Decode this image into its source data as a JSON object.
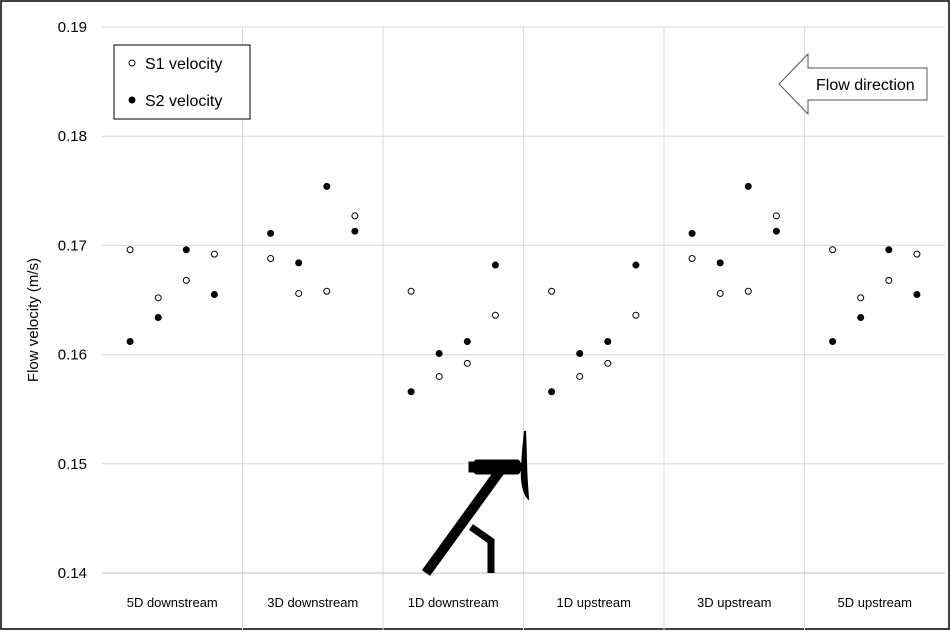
{
  "chart_data": {
    "type": "scatter",
    "title": "",
    "xlabel": "",
    "ylabel": "Flow velocity (m/s)",
    "ylim": [
      0.14,
      0.19
    ],
    "yticks": [
      "0.14",
      "0.15",
      "0.16",
      "0.17",
      "0.18",
      "0.19"
    ],
    "grid": true,
    "legend_position": "top-left",
    "annotation": "Flow direction",
    "categories": [
      "5D downstream",
      "3D downstream",
      "1D downstream",
      "1D upstream",
      "3D upstream",
      "5D upstream"
    ],
    "points_per_category": 4,
    "series": [
      {
        "name": "S1 velocity",
        "marker": "open-circle",
        "values": [
          [
            0.1696,
            0.1652,
            0.1668,
            0.1692
          ],
          [
            0.1688,
            0.1656,
            0.1658,
            0.1727
          ],
          [
            0.1658,
            0.158,
            0.1592,
            0.1636
          ],
          [
            0.1658,
            0.158,
            0.1592,
            0.1636
          ],
          [
            0.1688,
            0.1656,
            0.1658,
            0.1727
          ],
          [
            0.1696,
            0.1652,
            0.1668,
            0.1692
          ]
        ]
      },
      {
        "name": "S2 velocity",
        "marker": "filled-circle",
        "values": [
          [
            0.1612,
            0.1634,
            0.1696,
            0.1655
          ],
          [
            0.1711,
            0.1684,
            0.1754,
            0.1713
          ],
          [
            0.1566,
            0.1601,
            0.1612,
            0.1682
          ],
          [
            0.1566,
            0.1601,
            0.1612,
            0.1682
          ],
          [
            0.1711,
            0.1684,
            0.1754,
            0.1713
          ],
          [
            0.1612,
            0.1634,
            0.1696,
            0.1655
          ]
        ]
      }
    ],
    "colors": {
      "fill": "#000000",
      "open_fill": "#ffffff",
      "grid": "#d9d9d9",
      "axis": "#bfbfbf"
    }
  }
}
